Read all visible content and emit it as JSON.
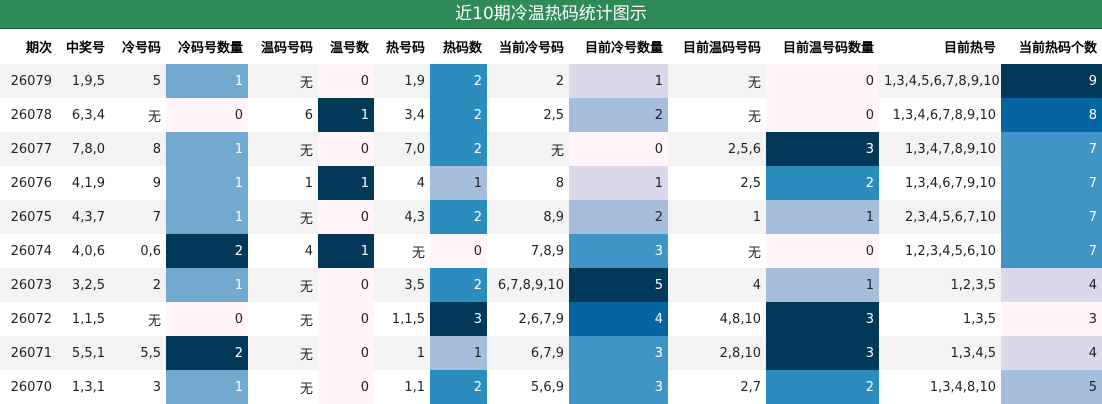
{
  "title": "近10期冷温热码统计图示",
  "headers": [
    "期次",
    "中奖号",
    "冷号码",
    "冷码号数量",
    "温码号码",
    "温号数",
    "热号码",
    "热码数",
    "当前冷号码",
    "目前冷号数量",
    "目前温码号码",
    "目前温号码数量",
    "目前热号",
    "当前热码个数"
  ],
  "rows": [
    [
      "26079",
      "1,9,5",
      "5",
      "1",
      "无",
      "0",
      "1,9",
      "2",
      "2",
      "1",
      "无",
      "0",
      "1,3,4,5,6,7,8,9,10",
      "9"
    ],
    [
      "26078",
      "6,3,4",
      "无",
      "0",
      "6",
      "1",
      "3,4",
      "2",
      "2,5",
      "2",
      "无",
      "0",
      "1,3,4,6,7,8,9,10",
      "8"
    ],
    [
      "26077",
      "7,8,0",
      "8",
      "1",
      "无",
      "0",
      "7,0",
      "2",
      "无",
      "0",
      "2,5,6",
      "3",
      "1,3,4,7,8,9,10",
      "7"
    ],
    [
      "26076",
      "4,1,9",
      "9",
      "1",
      "1",
      "1",
      "4",
      "1",
      "8",
      "1",
      "2,5",
      "2",
      "1,3,4,6,7,9,10",
      "7"
    ],
    [
      "26075",
      "4,3,7",
      "7",
      "1",
      "无",
      "0",
      "4,3",
      "2",
      "8,9",
      "2",
      "1",
      "1",
      "2,3,4,5,6,7,10",
      "7"
    ],
    [
      "26074",
      "4,0,6",
      "0,6",
      "2",
      "4",
      "1",
      "无",
      "0",
      "7,8,9",
      "3",
      "无",
      "0",
      "1,2,3,4,5,6,10",
      "7"
    ],
    [
      "26073",
      "3,2,5",
      "2",
      "1",
      "无",
      "0",
      "3,5",
      "2",
      "6,7,8,9,10",
      "5",
      "4",
      "1",
      "1,2,3,5",
      "4"
    ],
    [
      "26072",
      "1,1,5",
      "无",
      "0",
      "无",
      "0",
      "1,1,5",
      "3",
      "2,6,7,9",
      "4",
      "4,8,10",
      "3",
      "1,3,5",
      "3"
    ],
    [
      "26071",
      "5,5,1",
      "5,5",
      "2",
      "无",
      "0",
      "1",
      "1",
      "6,7,9",
      "3",
      "2,8,10",
      "3",
      "1,3,4,5",
      "4"
    ],
    [
      "26070",
      "1,3,1",
      "3",
      "1",
      "无",
      "0",
      "1,1",
      "2",
      "5,6,9",
      "3",
      "2,7",
      "2",
      "1,3,4,8,10",
      "5"
    ]
  ],
  "colors": {
    "title_bg": "#2e8b57",
    "lightest": "#fff5fa",
    "light": "#dad8ea",
    "mid_light": "#a6bddb",
    "mid": "#74a9cf",
    "mid_dark": "#2b8cbe",
    "dark": "#0565a0",
    "darkest": "#023858"
  },
  "heat_scales": {
    "3": {
      "0": "#fff5fa",
      "1": "#74a9cf",
      "2": "#023858"
    },
    "5": {
      "0": "#fff5fa",
      "1": "#023858"
    },
    "7": {
      "0": "#fff5fa",
      "1": "#a6bddb",
      "2": "#2b8cbe",
      "3": "#023858"
    },
    "9": {
      "0": "#fff5fa",
      "1": "#dad8ea",
      "2": "#a6bddb",
      "3": "#3f96c6",
      "4": "#0565a0",
      "5": "#023858"
    },
    "11": {
      "0": "#fff5fa",
      "1": "#a6bddb",
      "2": "#2b8cbe",
      "3": "#023858"
    },
    "13": {
      "3": "#fff5fa",
      "4": "#dad8ea",
      "5": "#a6bddb",
      "7": "#3f96c6",
      "8": "#0565a0",
      "9": "#023858"
    }
  }
}
